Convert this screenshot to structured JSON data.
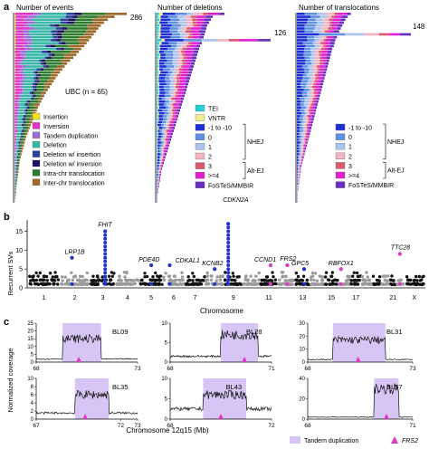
{
  "panels": {
    "a": {
      "letter": "a",
      "charts": [
        {
          "title": "Number of events",
          "max_label": "286",
          "inset_label": "UBC (n = 65)",
          "legend": [
            {
              "label": "Insertion",
              "color": "#f4e21b"
            },
            {
              "label": "Inversion",
              "color": "#e233c8"
            },
            {
              "label": "Tandem duplication",
              "color": "#9b6fd8"
            },
            {
              "label": "Deletion",
              "color": "#3ab7a8"
            },
            {
              "label": "Deletion w/ insertion",
              "color": "#2b3f9a"
            },
            {
              "label": "Deletion w/ inversion",
              "color": "#1d1160"
            },
            {
              "label": "Intra-chr translocation",
              "color": "#2e7d2e"
            },
            {
              "label": "Inter-chr translocation",
              "color": "#9b6a2b"
            }
          ]
        },
        {
          "title": "Number of deletions",
          "max_label": "126",
          "legend": [
            {
              "label": "TEI",
              "color": "#26d0d6"
            },
            {
              "label": "VNTR",
              "color": "#f2ec8c"
            },
            {
              "label": "-1 to -10",
              "color": "#1c2fd6"
            },
            {
              "label": "0",
              "color": "#5f8fe0"
            },
            {
              "label": "1",
              "color": "#a9c4ee"
            },
            {
              "label": "2",
              "color": "#f2b5c2"
            },
            {
              "label": "3",
              "color": "#d95a6e"
            },
            {
              "label": ">=4",
              "color": "#e220d2"
            },
            {
              "label": "FoSTeS/MMBIR",
              "color": "#6a2fc2"
            }
          ],
          "groups": [
            "NHEJ",
            "Alt-EJ"
          ]
        },
        {
          "title": "Number of translocations",
          "max_label": "148",
          "legend": [
            {
              "label": "-1 to -10",
              "color": "#1c2fd6"
            },
            {
              "label": "0",
              "color": "#5f8fe0"
            },
            {
              "label": "1",
              "color": "#a9c4ee"
            },
            {
              "label": "2",
              "color": "#f2b5c2"
            },
            {
              "label": "3",
              "color": "#d95a6e"
            },
            {
              "label": ">=4",
              "color": "#e220d2"
            },
            {
              "label": "FoSTeS/MMBIR",
              "color": "#6a2fc2"
            }
          ],
          "groups": [
            "NHEJ",
            "Alt-EJ"
          ]
        }
      ]
    },
    "b": {
      "letter": "b",
      "ylabel": "Recurrent SVs",
      "xlabel": "Chromosome",
      "yticks": [
        "0",
        "5",
        "10",
        "15"
      ],
      "xticks": [
        "1",
        "2",
        "3",
        "4",
        "5",
        "6",
        "7",
        "9",
        "11",
        "13",
        "15",
        "17",
        "21",
        "X"
      ],
      "genes": [
        {
          "label": "FHIT",
          "chrom": "3",
          "value": 15
        },
        {
          "label": "LRP1B",
          "chrom": "2",
          "value": 8
        },
        {
          "label": "PDE4D",
          "chrom": "5",
          "value": 6
        },
        {
          "label": "CDKAL1",
          "chrom": "6",
          "value": 6
        },
        {
          "label": "KCNB2",
          "chrom": "8",
          "value": 5
        },
        {
          "label": "CDKN2A",
          "chrom": "9",
          "value": 17
        },
        {
          "label": "CCND1",
          "chrom": "11",
          "value": 6
        },
        {
          "label": "FRS2",
          "chrom": "12",
          "value": 6
        },
        {
          "label": "GPC5",
          "chrom": "13",
          "value": 5
        },
        {
          "label": "RBFOX1",
          "chrom": "16",
          "value": 5
        },
        {
          "label": "TTC28",
          "chrom": "22",
          "value": 9
        }
      ]
    },
    "c": {
      "letter": "c",
      "ylabel": "Normalized coverage",
      "xlabel": "Chromosome 12q15 (Mb)",
      "legend": [
        {
          "label": "Tandem duplication",
          "color": "#d7c6f5"
        },
        {
          "label": "FRS2",
          "color": "#e03bc8"
        }
      ],
      "samples": [
        {
          "name": "BL09",
          "xticks": [
            "68",
            "73"
          ],
          "yticks": [
            "0",
            "5",
            "10",
            "15",
            "20",
            "25"
          ]
        },
        {
          "name": "BL28",
          "xticks": [
            "68",
            "71"
          ],
          "yticks": [
            "0",
            "5",
            "10"
          ]
        },
        {
          "name": "BL31",
          "xticks": [
            "68",
            "73"
          ],
          "yticks": [
            "0",
            "10",
            "20",
            "30"
          ]
        },
        {
          "name": "BL35",
          "xticks": [
            "67",
            "72",
            "73"
          ],
          "yticks": [
            "0",
            "2",
            "4",
            "6",
            "8",
            "10"
          ]
        },
        {
          "name": "BL43",
          "xticks": [
            "68",
            "72"
          ],
          "yticks": [
            "0",
            "5",
            "10"
          ]
        },
        {
          "name": "BL57",
          "xticks": [
            "68",
            "71"
          ],
          "yticks": [
            "0",
            "20",
            "40"
          ]
        }
      ]
    }
  },
  "chart_data": [
    {
      "type": "bar",
      "title": "Number of events",
      "orientation": "horizontal",
      "stacked": true,
      "series": [
        {
          "name": "Insertion"
        },
        {
          "name": "Inversion"
        },
        {
          "name": "Tandem duplication"
        },
        {
          "name": "Deletion"
        },
        {
          "name": "Deletion w/ insertion"
        },
        {
          "name": "Deletion w/ inversion"
        },
        {
          "name": "Intra-chr translocation"
        },
        {
          "name": "Inter-chr translocation"
        }
      ],
      "max_total": 286,
      "totals": [
        286,
        255,
        238,
        228,
        220,
        214,
        208,
        202,
        196,
        190,
        184,
        178,
        170,
        164,
        158,
        150,
        142,
        134,
        128,
        122,
        116,
        110,
        105,
        100,
        95,
        90,
        85,
        80,
        76,
        72,
        68,
        64,
        60,
        57,
        54,
        51,
        48,
        45,
        42,
        39,
        36,
        33,
        30,
        28,
        26,
        24,
        22,
        20,
        18,
        16,
        14,
        13,
        12,
        11,
        10,
        9,
        8,
        7,
        6,
        5,
        4,
        4,
        3,
        2,
        1
      ]
    },
    {
      "type": "bar",
      "title": "Number of deletions",
      "orientation": "horizontal",
      "stacked": true,
      "max_total": 126,
      "totals": [
        75,
        62,
        60,
        58,
        56,
        55,
        54,
        53,
        52,
        126,
        50,
        48,
        47,
        46,
        45,
        44,
        43,
        42,
        41,
        40,
        39,
        38,
        37,
        36,
        35,
        34,
        33,
        32,
        31,
        30,
        29,
        28,
        27,
        26,
        25,
        24,
        23,
        22,
        21,
        20,
        19,
        18,
        17,
        16,
        15,
        14,
        13,
        12,
        11,
        10,
        9,
        8,
        7,
        6,
        5,
        5,
        4,
        4,
        3,
        3,
        2,
        2,
        1,
        1,
        1
      ]
    },
    {
      "type": "bar",
      "title": "Number of translocations",
      "orientation": "horizontal",
      "stacked": true,
      "max_total": 148,
      "totals": [
        70,
        66,
        63,
        61,
        59,
        57,
        55,
        148,
        52,
        50,
        49,
        48,
        46,
        45,
        44,
        43,
        42,
        41,
        40,
        39,
        38,
        37,
        36,
        35,
        34,
        33,
        32,
        31,
        30,
        29,
        28,
        27,
        26,
        25,
        24,
        23,
        22,
        21,
        20,
        19,
        18,
        17,
        16,
        15,
        14,
        13,
        12,
        11,
        10,
        9,
        8,
        7,
        6,
        5,
        5,
        4,
        4,
        3,
        3,
        2,
        2,
        1,
        1,
        1,
        1
      ]
    },
    {
      "type": "scatter",
      "title": "",
      "xlabel": "Chromosome",
      "ylabel": "Recurrent SVs",
      "ylim": [
        0,
        18
      ]
    },
    {
      "type": "line",
      "xlabel": "Chromosome 12q15 (Mb)",
      "ylabel": "Normalized coverage",
      "series": [
        {
          "name": "BL09",
          "xlim": [
            68,
            73
          ],
          "ylim": [
            0,
            25
          ],
          "dup_range": [
            69.3,
            71.2
          ],
          "frs2": 70.1,
          "base": 2,
          "dup_level": 15
        },
        {
          "name": "BL28",
          "xlim": [
            68,
            71
          ],
          "ylim": [
            0,
            10
          ],
          "dup_range": [
            69.5,
            70.6
          ],
          "frs2": 70.2,
          "base": 1.5,
          "dup_level": 7
        },
        {
          "name": "BL31",
          "xlim": [
            68,
            73
          ],
          "ylim": [
            0,
            30
          ],
          "dup_range": [
            69.2,
            71.7
          ],
          "frs2": 70.4,
          "base": 2,
          "dup_level": 17
        },
        {
          "name": "BL35",
          "xlim": [
            67,
            73
          ],
          "ylim": [
            0,
            10
          ],
          "dup_range": [
            69.3,
            71.3
          ],
          "frs2": 69.9,
          "base": 1.5,
          "dup_level": 6
        },
        {
          "name": "BL43",
          "xlim": [
            68,
            72
          ],
          "ylim": [
            0,
            10
          ],
          "dup_range": [
            69.3,
            71.0
          ],
          "frs2": 70.0,
          "base": 2.5,
          "dup_level": 6
        },
        {
          "name": "BL57",
          "xlim": [
            68,
            71
          ],
          "ylim": [
            0,
            40
          ],
          "dup_range": [
            69.9,
            70.6
          ],
          "frs2": 70.25,
          "base": 2,
          "dup_level": 30
        }
      ]
    }
  ]
}
